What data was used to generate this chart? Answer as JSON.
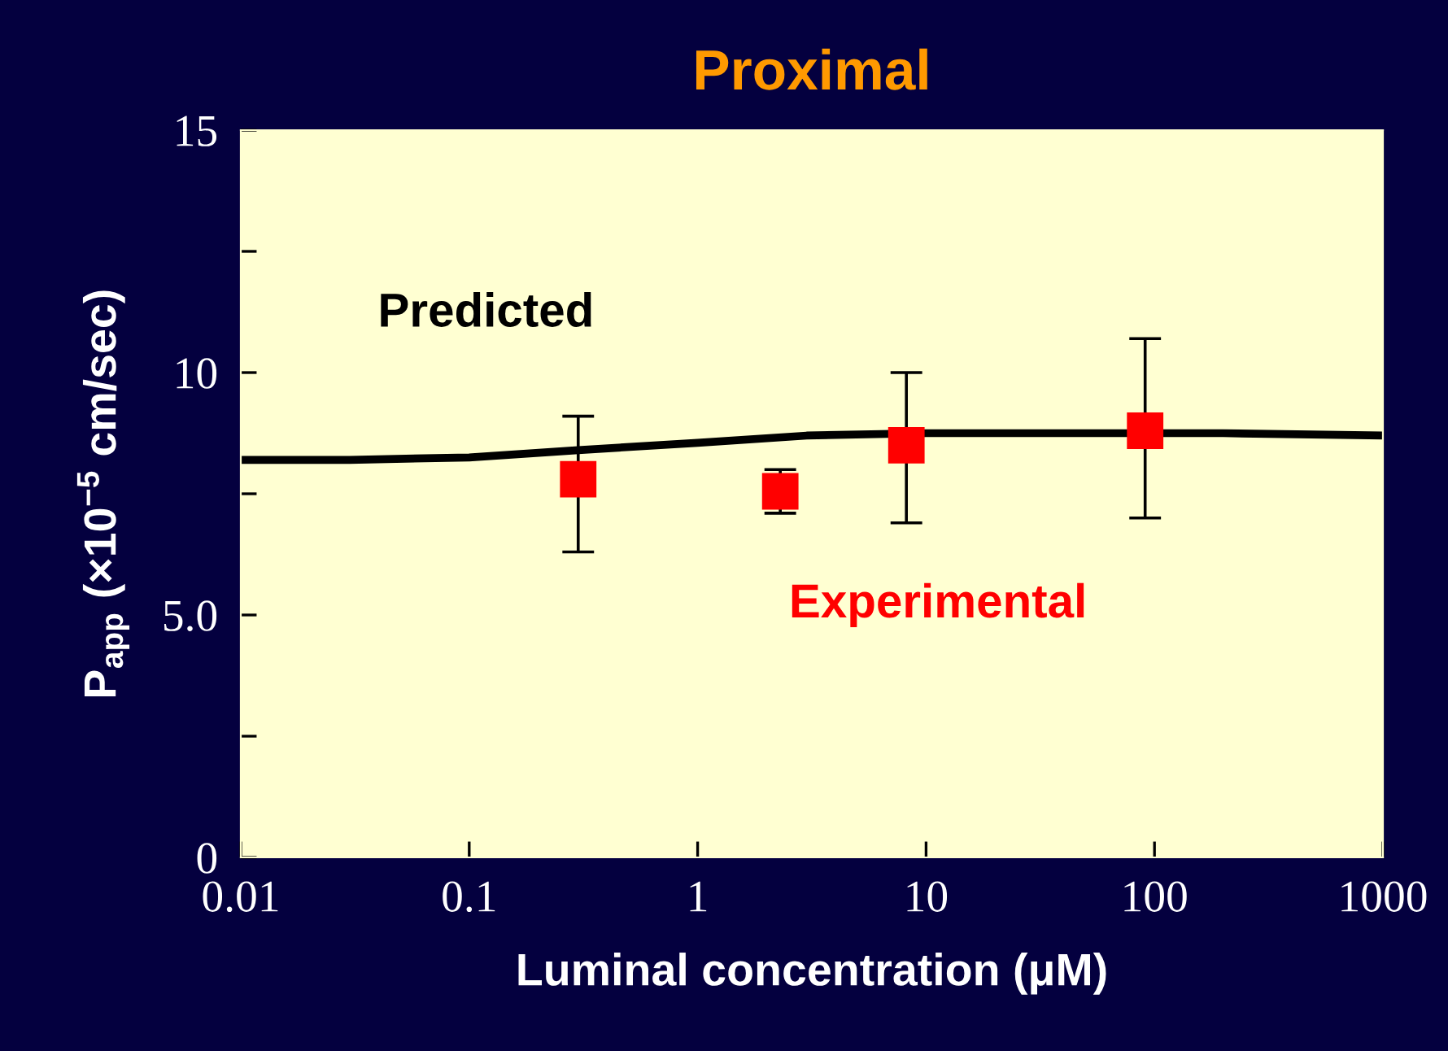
{
  "chart_data": {
    "type": "line",
    "title": "Proximal",
    "xlabel": "Luminal concentration (μM)",
    "ylabel": "P$_{app}$ (×10$^{−5}$ cm/sec)",
    "log": "x",
    "xlim": [
      0.01,
      1000
    ],
    "xticks": [
      {
        "value": 0.01,
        "label": "0.01"
      },
      {
        "value": 0.1,
        "label": "0.1"
      },
      1,
      10,
      100,
      1000
    ],
    "ylim": [
      0,
      15
    ],
    "yticks": [
      0,
      {
        "value": 2.5,
        "label": null
      },
      {
        "value": 5,
        "label": "5.0"
      },
      {
        "value": 7.5,
        "label": null
      },
      10,
      {
        "value": 12.5,
        "label": null
      },
      15
    ],
    "grid": false,
    "legend": false,
    "series": [
      {
        "name": "Predicted",
        "color": "#000000",
        "marker": "none",
        "line_style": "solid",
        "x": [
          0.01,
          0.03,
          0.1,
          0.3,
          1,
          3,
          10,
          30,
          60,
          200,
          1000
        ],
        "values": [
          8.2,
          8.2,
          8.25,
          8.4,
          8.55,
          8.7,
          8.75,
          8.75,
          8.75,
          8.75,
          8.7
        ]
      },
      {
        "name": "Experimental",
        "type": "scatter",
        "color": "#ff0000",
        "marker": "square",
        "x": [
          0.3,
          2.3,
          8.2,
          91
        ],
        "values": [
          7.8,
          7.55,
          8.5,
          8.8
        ],
        "errors": [
          [
            6.3,
            9.1
          ],
          [
            7.1,
            8.0
          ],
          [
            6.9,
            10.0
          ],
          [
            7.0,
            10.7
          ]
        ]
      }
    ]
  }
}
